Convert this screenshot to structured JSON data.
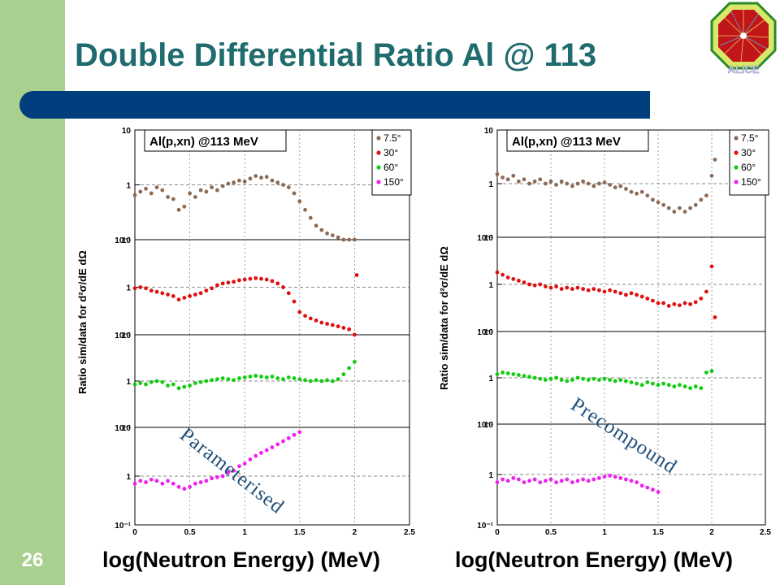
{
  "slide": {
    "title": "Double Differential Ratio Al @ 113",
    "page_number": "26",
    "colors": {
      "sidebar": "#a9d08e",
      "title_bar": "#003e7e",
      "title_text": "#1f6b6e"
    },
    "logo_icon": "alice-logo-icon"
  },
  "chart_data": [
    {
      "type": "scatter",
      "panel_title": "Al(p,xn) @113 MeV",
      "annotation": "Parameterised",
      "xlabel": "log(Neutron Energy) (MeV)",
      "ylabel": "Ratio sim/data for d²σ/dE dΩ",
      "xlim": [
        0,
        2.5
      ],
      "x_ticks": [
        "0",
        "0.5",
        "1",
        "1.5",
        "2",
        "2.5"
      ],
      "y_scale": "log",
      "ylim": [
        0.1,
        10
      ],
      "y_ticks": [
        "10⁻¹",
        "1",
        "10"
      ],
      "legend": [
        "7.5°",
        "30°",
        "60°",
        "150°"
      ],
      "legend_position": "top-right",
      "series": [
        {
          "name": "7.5°",
          "color": "#8b6b55",
          "x": [
            0.0,
            0.05,
            0.1,
            0.15,
            0.2,
            0.25,
            0.3,
            0.35,
            0.4,
            0.45,
            0.5,
            0.55,
            0.6,
            0.65,
            0.7,
            0.75,
            0.8,
            0.85,
            0.9,
            0.95,
            1.0,
            1.05,
            1.1,
            1.15,
            1.2,
            1.25,
            1.3,
            1.35,
            1.4,
            1.45,
            1.5,
            1.55,
            1.6,
            1.65,
            1.7,
            1.75,
            1.8,
            1.85,
            1.9,
            1.95,
            2.0
          ],
          "y": [
            0.65,
            0.75,
            0.85,
            0.7,
            0.9,
            0.8,
            0.6,
            0.55,
            0.35,
            0.4,
            0.7,
            0.6,
            0.8,
            0.75,
            0.9,
            0.8,
            0.95,
            1.05,
            1.1,
            1.2,
            1.15,
            1.3,
            1.45,
            1.35,
            1.4,
            1.2,
            1.1,
            1.0,
            0.9,
            0.7,
            0.5,
            0.35,
            0.25,
            0.18,
            0.15,
            0.13,
            0.12,
            0.11,
            0.09,
            0.1,
            0.08
          ]
        },
        {
          "name": "30°",
          "color": "#dd1111",
          "x": [
            0.0,
            0.05,
            0.1,
            0.15,
            0.2,
            0.25,
            0.3,
            0.35,
            0.4,
            0.45,
            0.5,
            0.55,
            0.6,
            0.65,
            0.7,
            0.75,
            0.8,
            0.85,
            0.9,
            0.95,
            1.0,
            1.05,
            1.1,
            1.15,
            1.2,
            1.25,
            1.3,
            1.35,
            1.4,
            1.45,
            1.5,
            1.55,
            1.6,
            1.65,
            1.7,
            1.75,
            1.8,
            1.85,
            1.9,
            1.95,
            2.0,
            2.02
          ],
          "y": [
            0.95,
            1.0,
            0.95,
            0.85,
            0.8,
            0.75,
            0.7,
            0.65,
            0.55,
            0.6,
            0.65,
            0.7,
            0.75,
            0.85,
            0.95,
            1.1,
            1.2,
            1.25,
            1.3,
            1.4,
            1.45,
            1.5,
            1.55,
            1.5,
            1.45,
            1.35,
            1.2,
            1.0,
            0.75,
            0.5,
            0.3,
            0.25,
            0.22,
            0.2,
            0.18,
            0.17,
            0.16,
            0.15,
            0.14,
            0.13,
            0.1,
            1.8
          ]
        },
        {
          "name": "60°",
          "color": "#11cc11",
          "x": [
            0.0,
            0.05,
            0.1,
            0.15,
            0.2,
            0.25,
            0.3,
            0.35,
            0.4,
            0.45,
            0.5,
            0.55,
            0.6,
            0.65,
            0.7,
            0.75,
            0.8,
            0.85,
            0.9,
            0.95,
            1.0,
            1.05,
            1.1,
            1.15,
            1.2,
            1.25,
            1.3,
            1.35,
            1.4,
            1.45,
            1.5,
            1.55,
            1.6,
            1.65,
            1.7,
            1.75,
            1.8,
            1.85,
            1.9,
            1.95,
            2.0
          ],
          "y": [
            0.85,
            0.9,
            0.85,
            0.95,
            1.0,
            0.95,
            0.8,
            0.85,
            0.7,
            0.75,
            0.8,
            0.9,
            0.95,
            1.0,
            1.05,
            1.1,
            1.15,
            1.1,
            1.05,
            1.15,
            1.2,
            1.25,
            1.3,
            1.25,
            1.2,
            1.25,
            1.15,
            1.1,
            1.2,
            1.15,
            1.1,
            1.05,
            1.0,
            1.05,
            1.0,
            1.05,
            1.0,
            1.1,
            1.4,
            1.9,
            2.6
          ]
        },
        {
          "name": "150°",
          "color": "#ee22ee",
          "x": [
            0.0,
            0.05,
            0.1,
            0.15,
            0.2,
            0.25,
            0.3,
            0.35,
            0.4,
            0.45,
            0.5,
            0.55,
            0.6,
            0.65,
            0.7,
            0.75,
            0.8,
            0.85,
            0.9,
            0.95,
            1.0,
            1.05,
            1.1,
            1.15,
            1.2,
            1.25,
            1.3,
            1.35,
            1.4,
            1.45,
            1.5
          ],
          "y": [
            0.7,
            0.8,
            0.75,
            0.85,
            0.8,
            0.7,
            0.8,
            0.7,
            0.6,
            0.55,
            0.6,
            0.7,
            0.75,
            0.8,
            0.9,
            0.95,
            1.0,
            1.2,
            1.3,
            1.6,
            1.8,
            2.2,
            2.6,
            3.0,
            3.4,
            3.9,
            4.5,
            5.2,
            6.0,
            7.0,
            8.0
          ]
        }
      ]
    },
    {
      "type": "scatter",
      "panel_title": "Al(p,xn) @113 MeV",
      "annotation": "Precompound",
      "xlabel": "log(Neutron Energy) (MeV)",
      "ylabel": "Ratio sim/data for d²σ/dE dΩ",
      "xlim": [
        0,
        2.5
      ],
      "x_ticks": [
        "0",
        "0.5",
        "1",
        "1.5",
        "2",
        "2.5"
      ],
      "y_scale": "log",
      "ylim": [
        0.1,
        10
      ],
      "y_ticks": [
        "10⁻¹",
        "1",
        "10"
      ],
      "legend": [
        "7.5°",
        "30°",
        "60°",
        "150°"
      ],
      "legend_position": "top-right",
      "series": [
        {
          "name": "7.5°",
          "color": "#8b6b55",
          "x": [
            0.0,
            0.05,
            0.1,
            0.15,
            0.2,
            0.25,
            0.3,
            0.35,
            0.4,
            0.45,
            0.5,
            0.55,
            0.6,
            0.65,
            0.7,
            0.75,
            0.8,
            0.85,
            0.9,
            0.95,
            1.0,
            1.05,
            1.1,
            1.15,
            1.2,
            1.25,
            1.3,
            1.35,
            1.4,
            1.45,
            1.5,
            1.55,
            1.6,
            1.65,
            1.7,
            1.75,
            1.8,
            1.85,
            1.9,
            1.95,
            2.0,
            2.03
          ],
          "y": [
            1.5,
            1.3,
            1.2,
            1.4,
            1.1,
            1.2,
            1.0,
            1.1,
            1.2,
            1.0,
            1.1,
            0.95,
            1.1,
            1.0,
            0.9,
            1.0,
            1.1,
            1.0,
            0.9,
            1.0,
            1.05,
            0.95,
            0.85,
            0.9,
            0.8,
            0.7,
            0.65,
            0.7,
            0.6,
            0.5,
            0.45,
            0.4,
            0.35,
            0.3,
            0.35,
            0.3,
            0.35,
            0.4,
            0.5,
            0.6,
            1.4,
            2.8
          ]
        },
        {
          "name": "30°",
          "color": "#dd1111",
          "x": [
            0.0,
            0.05,
            0.1,
            0.15,
            0.2,
            0.25,
            0.3,
            0.35,
            0.4,
            0.45,
            0.5,
            0.55,
            0.6,
            0.65,
            0.7,
            0.75,
            0.8,
            0.85,
            0.9,
            0.95,
            1.0,
            1.05,
            1.1,
            1.15,
            1.2,
            1.25,
            1.3,
            1.35,
            1.4,
            1.45,
            1.5,
            1.55,
            1.6,
            1.65,
            1.7,
            1.75,
            1.8,
            1.85,
            1.9,
            1.95,
            2.0,
            2.03
          ],
          "y": [
            1.8,
            1.6,
            1.4,
            1.3,
            1.2,
            1.1,
            1.0,
            0.95,
            1.0,
            0.9,
            0.85,
            0.9,
            0.8,
            0.85,
            0.8,
            0.85,
            0.8,
            0.75,
            0.8,
            0.75,
            0.7,
            0.75,
            0.7,
            0.65,
            0.6,
            0.65,
            0.6,
            0.55,
            0.5,
            0.45,
            0.4,
            0.4,
            0.35,
            0.38,
            0.36,
            0.4,
            0.38,
            0.42,
            0.5,
            0.7,
            2.4,
            0.2
          ]
        },
        {
          "name": "60°",
          "color": "#11cc11",
          "x": [
            0.0,
            0.05,
            0.1,
            0.15,
            0.2,
            0.25,
            0.3,
            0.35,
            0.4,
            0.45,
            0.5,
            0.55,
            0.6,
            0.65,
            0.7,
            0.75,
            0.8,
            0.85,
            0.9,
            0.95,
            1.0,
            1.05,
            1.1,
            1.15,
            1.2,
            1.25,
            1.3,
            1.35,
            1.4,
            1.45,
            1.5,
            1.55,
            1.6,
            1.65,
            1.7,
            1.75,
            1.8,
            1.85,
            1.9,
            1.95,
            2.0
          ],
          "y": [
            1.2,
            1.3,
            1.25,
            1.2,
            1.15,
            1.1,
            1.05,
            1.0,
            0.95,
            0.9,
            0.95,
            1.0,
            0.9,
            0.85,
            0.9,
            1.0,
            0.95,
            0.9,
            0.95,
            0.9,
            0.95,
            0.9,
            0.85,
            0.9,
            0.85,
            0.8,
            0.75,
            0.7,
            0.8,
            0.75,
            0.7,
            0.75,
            0.7,
            0.65,
            0.7,
            0.65,
            0.6,
            0.65,
            0.6,
            1.3,
            1.4
          ]
        },
        {
          "name": "150°",
          "color": "#ee22ee",
          "x": [
            0.0,
            0.05,
            0.1,
            0.15,
            0.2,
            0.25,
            0.3,
            0.35,
            0.4,
            0.45,
            0.5,
            0.55,
            0.6,
            0.65,
            0.7,
            0.75,
            0.8,
            0.85,
            0.9,
            0.95,
            1.0,
            1.05,
            1.1,
            1.15,
            1.2,
            1.25,
            1.3,
            1.35,
            1.4,
            1.45,
            1.5
          ],
          "y": [
            0.7,
            0.8,
            0.75,
            0.85,
            0.8,
            0.7,
            0.75,
            0.8,
            0.7,
            0.75,
            0.8,
            0.7,
            0.75,
            0.8,
            0.7,
            0.75,
            0.8,
            0.75,
            0.8,
            0.85,
            0.9,
            0.95,
            0.9,
            0.85,
            0.8,
            0.75,
            0.7,
            0.6,
            0.55,
            0.5,
            0.45
          ]
        }
      ]
    }
  ]
}
